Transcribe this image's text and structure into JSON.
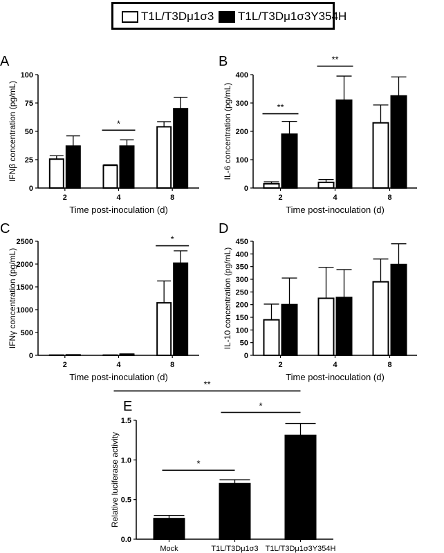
{
  "legend": {
    "items": [
      {
        "label": "T1L/T3Dμ1σ3",
        "fill": "#ffffff"
      },
      {
        "label": "T1L/T3Dμ1σ3Y354H",
        "fill": "#000000"
      }
    ]
  },
  "chart_data": [
    {
      "panel": "A",
      "type": "bar",
      "ylabel": "IFNβ concentration (pg/mL)",
      "xlabel": "Time post-inoculation (d)",
      "categories": [
        "2",
        "4",
        "8"
      ],
      "ylim": [
        0,
        100
      ],
      "yticks": [
        0,
        25,
        50,
        75,
        100
      ],
      "series": [
        {
          "name": "T1L/T3Dμ1σ3",
          "fill": "#ffffff",
          "values": [
            25.5,
            20,
            54
          ],
          "errors": [
            3,
            0.6,
            4.5
          ]
        },
        {
          "name": "T1L/T3Dμ1σ3Y354H",
          "fill": "#000000",
          "values": [
            37,
            37,
            70
          ],
          "errors": [
            9,
            5.5,
            10
          ]
        }
      ],
      "significance": [
        {
          "label": "*",
          "category_start": 1,
          "category_end": 1,
          "y": 51
        }
      ]
    },
    {
      "panel": "B",
      "type": "bar",
      "ylabel": "IL-6 concentration (pg/mL)",
      "xlabel": "Time post-inoculation (d)",
      "categories": [
        "2",
        "4",
        "8"
      ],
      "ylim": [
        0,
        400
      ],
      "yticks": [
        0,
        100,
        200,
        300,
        400
      ],
      "series": [
        {
          "name": "T1L/T3Dμ1σ3",
          "fill": "#ffffff",
          "values": [
            15,
            20,
            230
          ],
          "errors": [
            7,
            10,
            63
          ]
        },
        {
          "name": "T1L/T3Dμ1σ3Y354H",
          "fill": "#000000",
          "values": [
            190,
            310,
            325
          ],
          "errors": [
            45,
            85,
            67
          ]
        }
      ],
      "significance": [
        {
          "label": "**",
          "category_start": 0,
          "category_end": 0,
          "y": 262
        },
        {
          "label": "**",
          "category_start": 1,
          "category_end": 1,
          "y": 430
        }
      ]
    },
    {
      "panel": "C",
      "type": "bar",
      "ylabel": "IFNγ concentration (pg/mL)",
      "xlabel": "Time post-inoculation (d)",
      "categories": [
        "2",
        "4",
        "8"
      ],
      "ylim": [
        0,
        2500
      ],
      "yticks": [
        0,
        500,
        1000,
        1500,
        2000,
        2500
      ],
      "series": [
        {
          "name": "T1L/T3Dμ1σ3",
          "fill": "#ffffff",
          "values": [
            5,
            5,
            1150
          ],
          "errors": [
            0,
            0,
            480
          ]
        },
        {
          "name": "T1L/T3Dμ1σ3Y354H",
          "fill": "#000000",
          "values": [
            10,
            25,
            2020
          ],
          "errors": [
            0,
            5,
            270
          ]
        }
      ],
      "significance": [
        {
          "label": "*",
          "category_start": 2,
          "category_end": 2,
          "y": 2400
        }
      ]
    },
    {
      "panel": "D",
      "type": "bar",
      "ylabel": "IL-10 concentration (pg/mL)",
      "xlabel": "Time post-inoculation (d)",
      "categories": [
        "2",
        "4",
        "8"
      ],
      "ylim": [
        0,
        450
      ],
      "yticks": [
        0,
        50,
        100,
        150,
        200,
        250,
        300,
        350,
        400,
        450
      ],
      "series": [
        {
          "name": "T1L/T3Dμ1σ3",
          "fill": "#ffffff",
          "values": [
            140,
            225,
            290
          ],
          "errors": [
            62,
            122,
            90
          ]
        },
        {
          "name": "T1L/T3Dμ1σ3Y354H",
          "fill": "#000000",
          "values": [
            200,
            228,
            358
          ],
          "errors": [
            105,
            110,
            82
          ]
        }
      ],
      "significance": []
    },
    {
      "panel": "E",
      "type": "bar",
      "ylabel": "Relative luciferase activity",
      "xlabel": "",
      "categories": [
        "Mock",
        "T1L/T3Dμ1σ3",
        "T1L/T3Dμ1σ3Y354H"
      ],
      "ylim": [
        0,
        1.5
      ],
      "yticks": [
        0.0,
        0.5,
        1.0,
        1.5
      ],
      "series": [
        {
          "name": "",
          "fill": "#000000",
          "values": [
            0.26,
            0.7,
            1.31
          ],
          "errors": [
            0.04,
            0.05,
            0.15
          ]
        }
      ],
      "significance": [
        {
          "label": "*",
          "category_start": 0,
          "category_end": 1,
          "y": 0.87
        },
        {
          "label": "*",
          "category_start": 1,
          "category_end": 2,
          "y": 1.6
        },
        {
          "label": "**",
          "category_start": 0,
          "category_end": 2,
          "y": 1.87
        }
      ]
    }
  ]
}
